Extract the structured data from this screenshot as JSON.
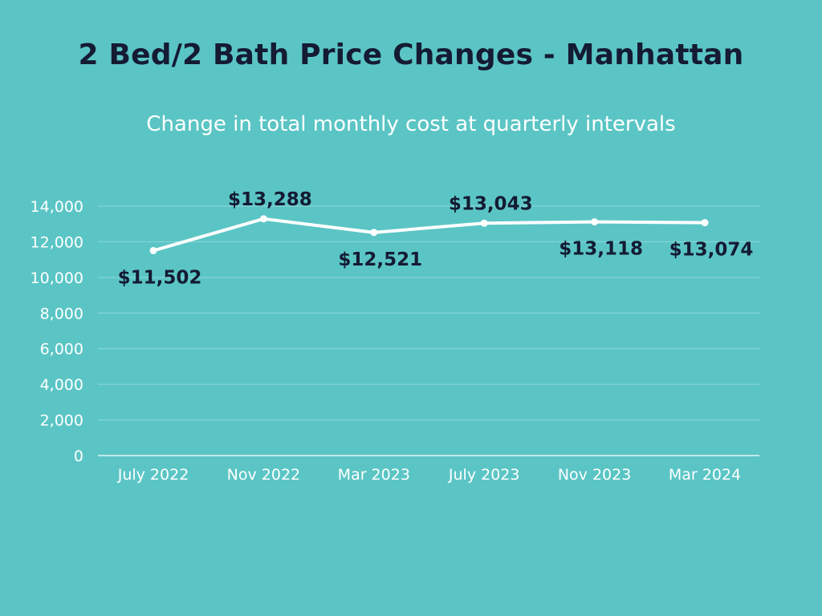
{
  "chart_data": {
    "type": "line",
    "title": "2 Bed/2 Bath Price Changes - Manhattan",
    "subtitle": "Change in total monthly cost at quarterly intervals",
    "categories": [
      "July 2022",
      "Nov 2022",
      "Mar 2023",
      "July 2023",
      "Nov 2023",
      "Mar 2024"
    ],
    "values": [
      11502,
      13288,
      12521,
      13043,
      13118,
      13074
    ],
    "data_labels": [
      "$11,502",
      "$13,288",
      "$12,521",
      "$13,043",
      "$13,118",
      "$13,074"
    ],
    "label_positions": [
      "below",
      "above",
      "below",
      "above",
      "below",
      "below"
    ],
    "ylim": [
      0,
      14000
    ],
    "yticks": [
      0,
      2000,
      4000,
      6000,
      8000,
      10000,
      12000,
      14000
    ],
    "ytick_labels": [
      "0",
      "2,000",
      "4,000",
      "6,000",
      "8,000",
      "10,000",
      "12,000",
      "14,000"
    ],
    "xlabel": "",
    "ylabel": "",
    "grid": true,
    "colors": {
      "background": "#5bc5c5",
      "line": "#ffffff",
      "grid": "#8fd8d8",
      "title": "#141b33",
      "label": "#141b33"
    }
  }
}
